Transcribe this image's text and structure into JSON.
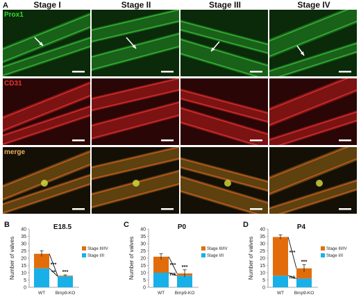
{
  "panel_labels": [
    "A",
    "B",
    "C",
    "D"
  ],
  "stages": [
    "Stage I",
    "Stage II",
    "Stage III",
    "Stage IV"
  ],
  "channels": [
    {
      "label": "Prox1",
      "color": "#33dd33"
    },
    {
      "label": "CD31",
      "color": "#ee3333"
    },
    {
      "label": "merge",
      "color": "#e8b060"
    }
  ],
  "colors": {
    "stage_34": "#e36c0a",
    "stage_12": "#17b0e8",
    "arrow": "#ffffff",
    "scale_bar": "#ffffff"
  },
  "chart_data": [
    {
      "type": "bar",
      "title": "E18.5",
      "categories": [
        "WT",
        "Bmp9-KO"
      ],
      "series": [
        {
          "name": "Stage I/II",
          "values": [
            13,
            7.5
          ]
        },
        {
          "name": "Stage III/IV",
          "values": [
            10,
            0.5
          ]
        }
      ],
      "totals_error": [
        2,
        0.5
      ],
      "ylabel": "Number of valves",
      "ylim": [
        0,
        40
      ],
      "yticks": [
        0,
        5,
        10,
        15,
        20,
        25,
        30,
        35,
        40
      ],
      "legend_position": "right",
      "annotations": {
        "upper": "***",
        "lower": "**",
        "top": "***"
      }
    },
    {
      "type": "bar",
      "title": "P0",
      "categories": [
        "WT",
        "Bmp9-KO"
      ],
      "series": [
        {
          "name": "Stage I/II",
          "values": [
            10,
            8
          ]
        },
        {
          "name": "Stage III/IV",
          "values": [
            11,
            1.5
          ]
        }
      ],
      "totals_error": [
        2,
        2.5
      ],
      "ylabel": "Number of valves",
      "ylim": [
        0,
        40
      ],
      "yticks": [
        0,
        5,
        10,
        15,
        20,
        25,
        30,
        35,
        40
      ],
      "legend_position": "right",
      "annotations": {
        "upper": "***",
        "lower": "ns",
        "top": "***"
      }
    },
    {
      "type": "bar",
      "title": "P4",
      "categories": [
        "WT",
        "Bmp9-KO"
      ],
      "series": [
        {
          "name": "Stage I/II",
          "values": [
            8,
            6
          ]
        },
        {
          "name": "Stage III/IV",
          "values": [
            26.5,
            7
          ]
        }
      ],
      "totals_error": [
        1.5,
        2.5
      ],
      "ylabel": "Number of valves",
      "ylim": [
        0,
        40
      ],
      "yticks": [
        0,
        5,
        10,
        15,
        20,
        25,
        30,
        35,
        40
      ],
      "legend_position": "right",
      "annotations": {
        "upper": "***",
        "lower": "ns",
        "top": "***"
      }
    }
  ]
}
